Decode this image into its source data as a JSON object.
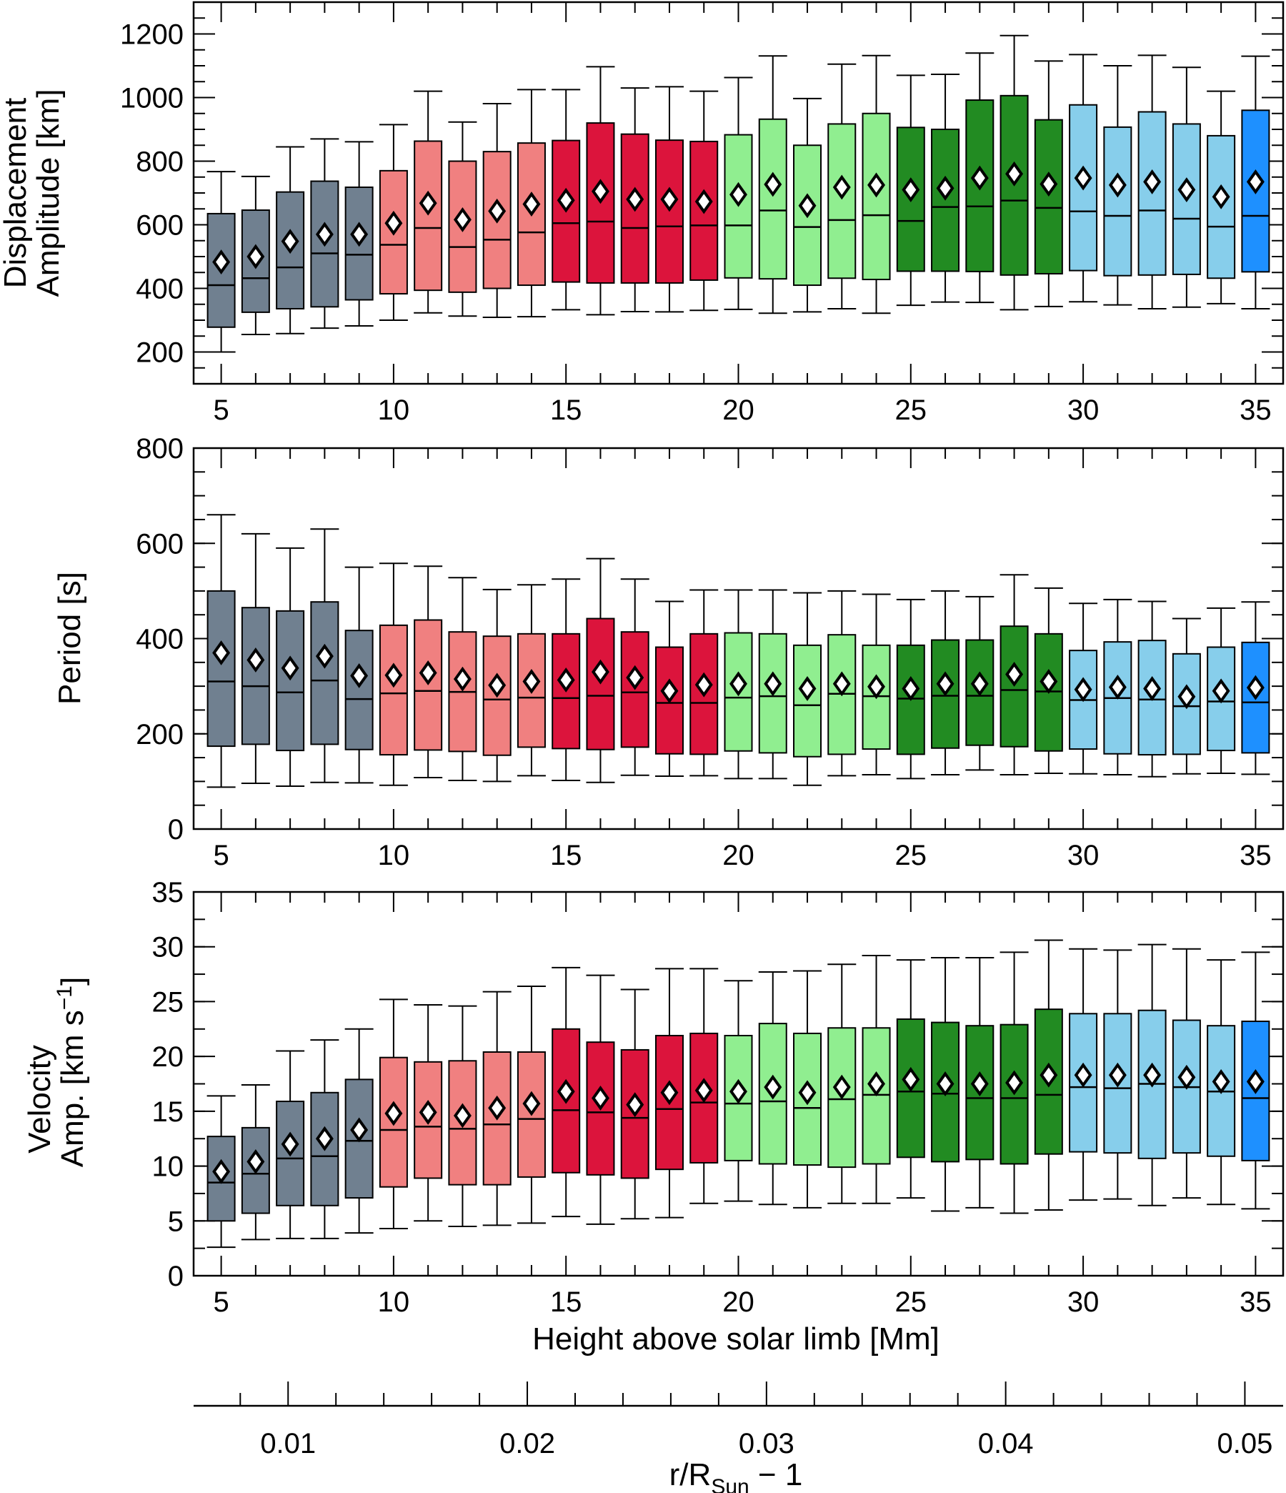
{
  "colors": {
    "groups": [
      "#708090",
      "#f08080",
      "#dc143c",
      "#90ee90",
      "#228b22",
      "#87ceeb",
      "#1e90ff"
    ],
    "mean_fill": "#ffffff"
  },
  "chart_data": [
    {
      "type": "box",
      "ylabel_lines": [
        "Displacement",
        "Amplitude [km]"
      ],
      "ylabel_sub": "",
      "ylim": [
        100,
        1300
      ],
      "yticks": [
        200,
        400,
        600,
        800,
        1000,
        1200
      ],
      "yminor_step": 50,
      "x": [
        5,
        6,
        7,
        8,
        9,
        10,
        11,
        12,
        13,
        14,
        15,
        16,
        17,
        18,
        19,
        20,
        21,
        22,
        23,
        24,
        25,
        26,
        27,
        28,
        29,
        30,
        31,
        32,
        33,
        34,
        35
      ],
      "xlim": [
        4.2,
        35.8
      ],
      "xticks": [
        5,
        10,
        15,
        20,
        25,
        30,
        35
      ],
      "group": [
        0,
        0,
        0,
        0,
        0,
        1,
        1,
        1,
        1,
        1,
        2,
        2,
        2,
        2,
        2,
        3,
        3,
        3,
        3,
        3,
        4,
        4,
        4,
        4,
        4,
        5,
        5,
        5,
        5,
        5,
        6
      ],
      "whisker_low": [
        200,
        255,
        258,
        275,
        282,
        300,
        323,
        313,
        309,
        311,
        333,
        317,
        327,
        326,
        331,
        334,
        322,
        326,
        336,
        322,
        347,
        357,
        356,
        333,
        343,
        358,
        348,
        336,
        341,
        352,
        336
      ],
      "q1": [
        278,
        325,
        336,
        342,
        364,
        383,
        394,
        388,
        400,
        410,
        420,
        417,
        417,
        417,
        426,
        433,
        430,
        410,
        432,
        428,
        454,
        454,
        453,
        442,
        446,
        456,
        440,
        442,
        444,
        432,
        452
      ],
      "median": [
        410,
        432,
        466,
        510,
        506,
        537,
        590,
        530,
        553,
        576,
        605,
        610,
        590,
        595,
        598,
        598,
        645,
        593,
        615,
        630,
        612,
        656,
        658,
        676,
        653,
        642,
        628,
        645,
        619,
        594,
        628
      ],
      "q3": [
        635,
        646,
        703,
        737,
        718,
        770,
        863,
        800,
        830,
        857,
        865,
        920,
        885,
        866,
        862,
        883,
        932,
        850,
        917,
        950,
        906,
        900,
        992,
        1006,
        930,
        977,
        907,
        955,
        917,
        880,
        960
      ],
      "whisker_high": [
        767,
        752,
        845,
        870,
        861,
        915,
        1020,
        923,
        981,
        1025,
        1025,
        1097,
        1030,
        1034,
        1020,
        1063,
        1131,
        997,
        1105,
        1132,
        1070,
        1073,
        1140,
        1195,
        1115,
        1135,
        1100,
        1133,
        1095,
        1020,
        1130
      ],
      "mean": [
        483,
        500,
        548,
        570,
        570,
        605,
        668,
        616,
        643,
        665,
        677,
        705,
        680,
        680,
        673,
        695,
        727,
        660,
        718,
        725,
        710,
        715,
        747,
        760,
        728,
        747,
        725,
        735,
        710,
        688,
        735
      ]
    },
    {
      "type": "box",
      "ylabel_lines": [
        "Period [s]"
      ],
      "ylabel_sub": "",
      "ylim": [
        0,
        800
      ],
      "yticks": [
        0,
        200,
        400,
        600,
        800
      ],
      "yminor_step": 50,
      "x": [
        5,
        6,
        7,
        8,
        9,
        10,
        11,
        12,
        13,
        14,
        15,
        16,
        17,
        18,
        19,
        20,
        21,
        22,
        23,
        24,
        25,
        26,
        27,
        28,
        29,
        30,
        31,
        32,
        33,
        34,
        35
      ],
      "xlim": [
        4.2,
        35.8
      ],
      "xticks": [
        5,
        10,
        15,
        20,
        25,
        30,
        35
      ],
      "group": [
        0,
        0,
        0,
        0,
        0,
        1,
        1,
        1,
        1,
        1,
        2,
        2,
        2,
        2,
        2,
        3,
        3,
        3,
        3,
        3,
        4,
        4,
        4,
        4,
        4,
        5,
        5,
        5,
        5,
        5,
        6
      ],
      "whisker_low": [
        88,
        96,
        90,
        98,
        97,
        92,
        108,
        102,
        100,
        112,
        102,
        98,
        113,
        111,
        112,
        106,
        106,
        92,
        112,
        114,
        106,
        114,
        124,
        114,
        117,
        116,
        114,
        110,
        116,
        117,
        115
      ],
      "q1": [
        174,
        178,
        165,
        178,
        167,
        156,
        166,
        163,
        155,
        172,
        169,
        167,
        172,
        158,
        157,
        164,
        160,
        152,
        157,
        168,
        157,
        170,
        176,
        173,
        164,
        168,
        158,
        156,
        157,
        165,
        160
      ],
      "median": [
        310,
        300,
        287,
        312,
        273,
        285,
        290,
        288,
        272,
        276,
        275,
        280,
        287,
        265,
        265,
        276,
        279,
        260,
        284,
        279,
        274,
        280,
        280,
        292,
        289,
        271,
        275,
        272,
        258,
        268,
        266
      ],
      "q3": [
        500,
        465,
        458,
        477,
        417,
        428,
        439,
        414,
        405,
        410,
        410,
        442,
        414,
        382,
        410,
        412,
        410,
        386,
        408,
        386,
        386,
        397,
        397,
        426,
        410,
        375,
        393,
        396,
        368,
        382,
        392
      ],
      "whisker_high": [
        660,
        620,
        590,
        630,
        550,
        558,
        552,
        528,
        503,
        513,
        525,
        568,
        525,
        478,
        502,
        502,
        502,
        496,
        500,
        493,
        482,
        500,
        488,
        534,
        506,
        474,
        482,
        478,
        442,
        464,
        477
      ],
      "mean": [
        370,
        355,
        338,
        363,
        322,
        323,
        328,
        315,
        302,
        310,
        313,
        330,
        318,
        290,
        303,
        305,
        305,
        295,
        305,
        299,
        295,
        305,
        305,
        325,
        310,
        293,
        298,
        295,
        278,
        290,
        297
      ]
    },
    {
      "type": "box",
      "ylabel_lines": [
        "Velocity",
        "Amp. [km s"
      ],
      "ylabel_sub": "−1",
      "ylabel_close": "]",
      "ylim": [
        0,
        35
      ],
      "yticks": [
        0,
        5,
        10,
        15,
        20,
        25,
        30,
        35
      ],
      "yminor_step": 2.5,
      "x": [
        5,
        6,
        7,
        8,
        9,
        10,
        11,
        12,
        13,
        14,
        15,
        16,
        17,
        18,
        19,
        20,
        21,
        22,
        23,
        24,
        25,
        26,
        27,
        28,
        29,
        30,
        31,
        32,
        33,
        34,
        35
      ],
      "xlim": [
        4.2,
        35.8
      ],
      "xticks": [
        5,
        10,
        15,
        20,
        25,
        30,
        35
      ],
      "xlabel": "Height above solar limb [Mm]",
      "group": [
        0,
        0,
        0,
        0,
        0,
        1,
        1,
        1,
        1,
        1,
        2,
        2,
        2,
        2,
        2,
        3,
        3,
        3,
        3,
        3,
        4,
        4,
        4,
        4,
        4,
        5,
        5,
        5,
        5,
        5,
        6
      ],
      "whisker_low": [
        2.6,
        3.3,
        3.4,
        3.4,
        3.9,
        4.3,
        5.0,
        4.5,
        4.6,
        4.8,
        5.4,
        4.7,
        5.2,
        5.3,
        6.6,
        6.8,
        6.5,
        6.2,
        6.6,
        6.6,
        7.1,
        5.9,
        6.2,
        5.7,
        6.0,
        6.9,
        7.0,
        6.4,
        7.1,
        6.5,
        6.1
      ],
      "q1": [
        5.0,
        5.7,
        6.4,
        6.4,
        7.1,
        8.1,
        8.9,
        8.3,
        8.3,
        9.0,
        9.4,
        9.2,
        8.9,
        9.7,
        10.3,
        10.5,
        10.2,
        10.1,
        9.9,
        10.2,
        10.8,
        10.4,
        10.6,
        10.2,
        11.1,
        11.3,
        11.2,
        10.7,
        11.2,
        10.9,
        10.5
      ],
      "median": [
        8.5,
        9.3,
        10.7,
        10.9,
        12.3,
        13.3,
        13.6,
        13.4,
        13.8,
        14.3,
        15.1,
        14.9,
        14.4,
        15.2,
        15.8,
        15.7,
        15.9,
        15.3,
        16.1,
        16.5,
        16.8,
        16.6,
        16.2,
        16.2,
        16.5,
        17.2,
        17.1,
        17.5,
        17.2,
        16.8,
        16.2
      ],
      "q3": [
        12.7,
        13.5,
        15.9,
        16.7,
        17.9,
        19.9,
        19.5,
        19.6,
        20.4,
        20.4,
        22.5,
        21.3,
        20.6,
        21.9,
        22.1,
        21.9,
        23.0,
        22.1,
        22.6,
        22.6,
        23.4,
        23.1,
        22.8,
        22.9,
        24.3,
        23.9,
        23.9,
        24.2,
        23.3,
        22.8,
        23.2
      ],
      "whisker_high": [
        16.4,
        17.4,
        20.5,
        21.5,
        22.5,
        25.2,
        24.7,
        24.6,
        25.9,
        26.4,
        28.1,
        27.4,
        26.1,
        28.0,
        28.0,
        26.9,
        27.7,
        27.8,
        28.4,
        29.2,
        28.8,
        29.0,
        29.0,
        29.5,
        30.6,
        29.8,
        29.7,
        30.2,
        29.8,
        28.8,
        29.5
      ],
      "mean": [
        9.5,
        10.4,
        12.0,
        12.5,
        13.3,
        14.8,
        14.9,
        14.6,
        15.3,
        15.7,
        16.8,
        16.2,
        15.6,
        16.7,
        16.9,
        16.8,
        17.2,
        16.7,
        17.2,
        17.5,
        17.9,
        17.5,
        17.5,
        17.6,
        18.3,
        18.3,
        18.3,
        18.3,
        18.1,
        17.7,
        17.7
      ]
    },
    {
      "type": "axis",
      "xlabel": "r/R",
      "xlabel_sub": "Sun",
      "xlabel_tail": " − 1",
      "xlim": [
        0.00605,
        0.0516
      ],
      "xticks": [
        "0.01",
        "0.02",
        "0.03",
        "0.04",
        "0.05"
      ],
      "xminor_step": 0.002
    }
  ]
}
